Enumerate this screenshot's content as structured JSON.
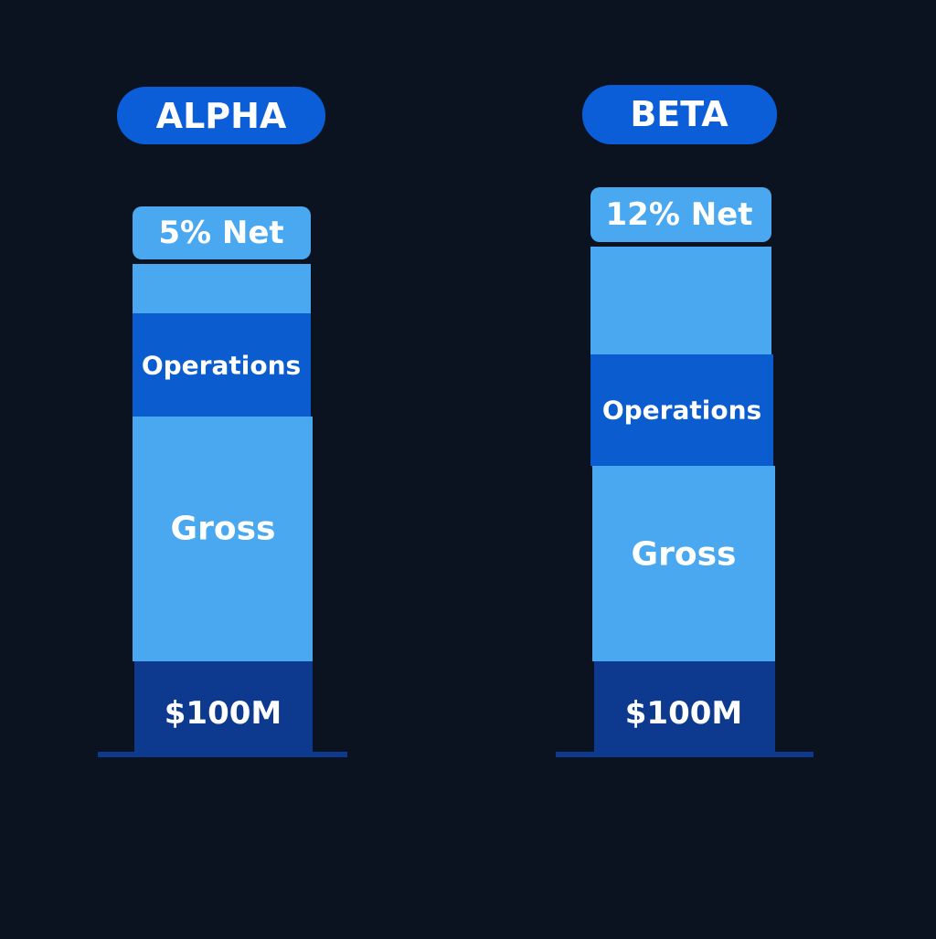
{
  "columns": [
    {
      "title": "ALPHA",
      "net_label": "5% Net",
      "segments": [
        "Operations",
        "Gross"
      ],
      "base_label": "$100M"
    },
    {
      "title": "BETA",
      "net_label": "12% Net",
      "segments": [
        "Operations",
        "Gross"
      ],
      "base_label": "$100M"
    }
  ]
}
